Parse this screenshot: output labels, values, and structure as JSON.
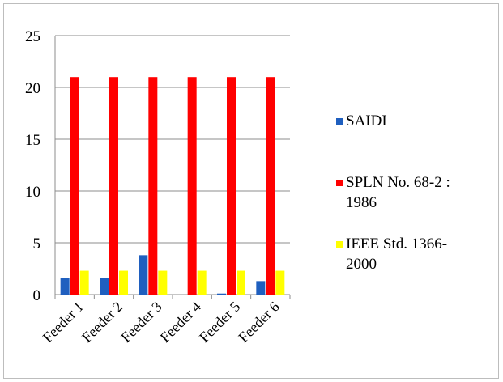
{
  "chart_data": {
    "type": "bar",
    "categories": [
      "Feeder 1",
      "Feeder 2",
      "Feeder 3",
      "Feeder 4",
      "Feeder 5",
      "Feeder 6"
    ],
    "series": [
      {
        "name": "SAIDI",
        "values": [
          1.6,
          1.6,
          3.8,
          0.0,
          0.1,
          1.3
        ],
        "color": "#1f5fbf"
      },
      {
        "name": "SPLN No. 68-2 : 1986",
        "values": [
          21,
          21,
          21,
          21,
          21,
          21
        ],
        "color": "#ff0000"
      },
      {
        "name": "IEEE Std. 1366-2000",
        "values": [
          2.3,
          2.3,
          2.3,
          2.3,
          2.3,
          2.3
        ],
        "color": "#ffff00"
      }
    ],
    "yticks": [
      0,
      5,
      10,
      15,
      20,
      25
    ],
    "ylim": [
      0,
      25
    ],
    "grid": true,
    "legend_position": "right",
    "legend_lines": [
      [
        "SAIDI"
      ],
      [
        "SPLN No. 68-2 :",
        "1986"
      ],
      [
        "IEEE Std. 1366-",
        "2000"
      ]
    ]
  }
}
